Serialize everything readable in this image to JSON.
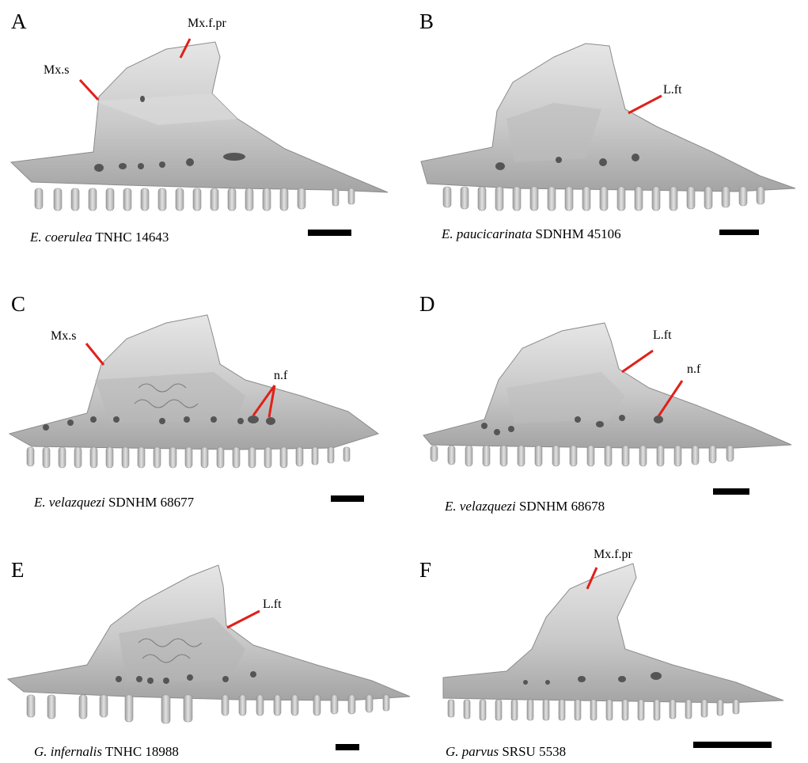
{
  "figure": {
    "panels": [
      {
        "letter": "A",
        "species": "E. coerulea",
        "specimen": "TNHC 14643",
        "labels": [
          "Mx.s",
          "Mx.f.pr"
        ]
      },
      {
        "letter": "B",
        "species": "E. paucicarinata",
        "specimen": "SDNHM 45106",
        "labels": [
          "L.ft"
        ]
      },
      {
        "letter": "C",
        "species": "E. velazquezi",
        "specimen": "SDNHM 68677",
        "labels": [
          "Mx.s",
          "n.f"
        ]
      },
      {
        "letter": "D",
        "species": "E. velazquezi",
        "specimen": "SDNHM 68678",
        "labels": [
          "L.ft",
          "n.f"
        ]
      },
      {
        "letter": "E",
        "species": "G. infernalis",
        "specimen": "TNHC 18988",
        "labels": [
          "L.ft"
        ]
      },
      {
        "letter": "F",
        "species": "G. parvus",
        "specimen": "SRSU 5538",
        "labels": [
          "Mx.f.pr"
        ]
      }
    ]
  },
  "colors": {
    "bone_fill": "#cfcfcf",
    "bone_shade": "#9a9a9a",
    "bone_dark": "#6e6e6e",
    "leader_line": "#e0201b",
    "scale_bar": "#000000"
  }
}
